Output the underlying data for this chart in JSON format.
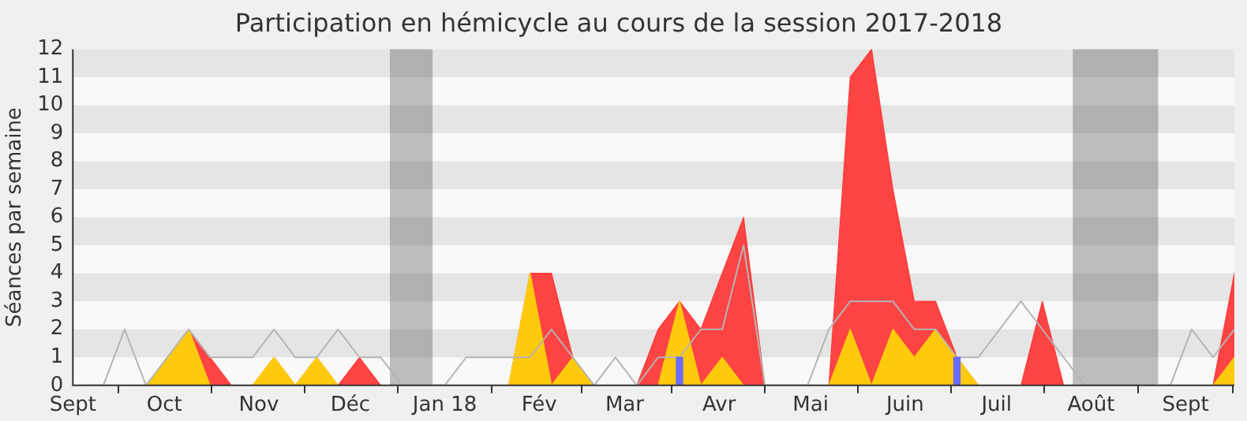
{
  "chart_data": {
    "type": "area",
    "title": "Participation en hémicycle au cours de la session 2017-2018",
    "ylabel": "Séances par semaine",
    "x": [
      "2017-09-04",
      "2017-09-11",
      "2017-09-18",
      "2017-09-25",
      "2017-10-02",
      "2017-10-09",
      "2017-10-16",
      "2017-10-23",
      "2017-10-30",
      "2017-11-06",
      "2017-11-13",
      "2017-11-20",
      "2017-11-27",
      "2017-12-04",
      "2017-12-11",
      "2017-12-18",
      "2017-12-25",
      "2018-01-01",
      "2018-01-08",
      "2018-01-15",
      "2018-01-22",
      "2018-01-29",
      "2018-02-05",
      "2018-02-12",
      "2018-02-19",
      "2018-02-26",
      "2018-03-05",
      "2018-03-12",
      "2018-03-19",
      "2018-03-26",
      "2018-04-02",
      "2018-04-09",
      "2018-04-16",
      "2018-04-23",
      "2018-04-30",
      "2018-05-07",
      "2018-05-14",
      "2018-05-21",
      "2018-05-28",
      "2018-06-04",
      "2018-06-11",
      "2018-06-18",
      "2018-06-25",
      "2018-07-02",
      "2018-07-09",
      "2018-07-16",
      "2018-07-23",
      "2018-07-30",
      "2018-08-06",
      "2018-08-13",
      "2018-08-20",
      "2018-08-27",
      "2018-09-03",
      "2018-09-10",
      "2018-09-17"
    ],
    "series": [
      {
        "color": "#ff3a3a",
        "values": [
          0,
          0,
          0,
          0,
          1,
          2,
          1,
          0,
          0,
          1,
          0,
          1,
          0,
          1,
          0,
          0,
          0,
          0,
          0,
          0,
          0,
          4,
          4,
          1,
          0,
          0,
          0,
          2,
          3,
          2,
          4,
          6,
          0,
          0,
          0,
          0,
          11,
          12,
          7,
          3,
          3,
          1,
          0,
          0,
          0,
          3,
          0,
          0,
          0,
          0,
          0,
          0,
          0,
          0,
          4
        ]
      },
      {
        "color": "#ffd20a",
        "values": [
          0,
          0,
          0,
          0,
          1,
          2,
          0,
          0,
          0,
          1,
          0,
          1,
          0,
          0,
          0,
          0,
          0,
          0,
          0,
          0,
          0,
          4,
          0,
          1,
          0,
          0,
          0,
          0,
          3,
          0,
          1,
          0,
          0,
          0,
          0,
          0,
          2,
          0,
          2,
          1,
          2,
          1,
          0,
          0,
          0,
          0,
          0,
          0,
          0,
          0,
          0,
          0,
          0,
          0,
          1
        ]
      },
      {
        "type": "line",
        "color": "#b4b4b4",
        "values": [
          0,
          0,
          2,
          0,
          1,
          2,
          1,
          1,
          1,
          2,
          1,
          1,
          2,
          1,
          1,
          0,
          0,
          0,
          1,
          1,
          1,
          1,
          2,
          1,
          0,
          1,
          0,
          1,
          1,
          2,
          2,
          5,
          0,
          0,
          0,
          2,
          3,
          3,
          3,
          2,
          2,
          1,
          1,
          2,
          3,
          2,
          1,
          0,
          0,
          0,
          0,
          0,
          2,
          1,
          2
        ]
      },
      {
        "type": "bar",
        "color": "#6b6bff",
        "values": [
          null,
          null,
          null,
          null,
          null,
          null,
          null,
          null,
          null,
          null,
          null,
          null,
          null,
          null,
          null,
          null,
          null,
          null,
          null,
          null,
          null,
          null,
          null,
          null,
          null,
          null,
          null,
          null,
          1,
          null,
          null,
          null,
          null,
          null,
          null,
          null,
          null,
          null,
          null,
          null,
          null,
          1,
          null,
          null,
          null,
          null,
          null,
          null,
          null,
          null,
          null,
          null,
          null,
          null,
          null
        ]
      }
    ],
    "xlim": [
      "2017-09-01",
      "2018-09-17"
    ],
    "xticks": [
      {
        "value": "2017-09-01",
        "label": "Sept"
      },
      {
        "value": "2017-10-01",
        "label": "Oct"
      },
      {
        "value": "2017-11-01",
        "label": "Nov"
      },
      {
        "value": "2017-12-01",
        "label": "Déc"
      },
      {
        "value": "2018-01-01",
        "label": "Jan 18"
      },
      {
        "value": "2018-02-01",
        "label": "Fév"
      },
      {
        "value": "2018-03-01",
        "label": "Mar"
      },
      {
        "value": "2018-04-01",
        "label": "Avr"
      },
      {
        "value": "2018-05-01",
        "label": "Mai"
      },
      {
        "value": "2018-06-01",
        "label": "Juin"
      },
      {
        "value": "2018-07-01",
        "label": "Juil"
      },
      {
        "value": "2018-08-01",
        "label": "Août"
      },
      {
        "value": "2018-09-01",
        "label": "Sept"
      }
    ],
    "ylim": [
      0,
      12
    ],
    "yticks": [
      0,
      1,
      2,
      3,
      4,
      5,
      6,
      7,
      8,
      9,
      10,
      11,
      12
    ],
    "legend": false,
    "marker": "none",
    "bands": [
      {
        "axis": "y",
        "from": 1,
        "to": 2,
        "color": "#e5e5e5"
      },
      {
        "axis": "y",
        "from": 3,
        "to": 4,
        "color": "#e5e5e5"
      },
      {
        "axis": "y",
        "from": 5,
        "to": 6,
        "color": "#e5e5e5"
      },
      {
        "axis": "y",
        "from": 7,
        "to": 8,
        "color": "#e5e5e5"
      },
      {
        "axis": "y",
        "from": 9,
        "to": 10,
        "color": "#e5e5e5"
      },
      {
        "axis": "y",
        "from": 11,
        "to": 12,
        "color": "#e5e5e5"
      },
      {
        "axis": "x",
        "from": "2017-12-14",
        "to": "2017-12-28",
        "color": "#4e4e4e"
      },
      {
        "axis": "x",
        "from": "2018-07-26",
        "to": "2018-08-23",
        "color": "#4e4e4e"
      }
    ]
  }
}
